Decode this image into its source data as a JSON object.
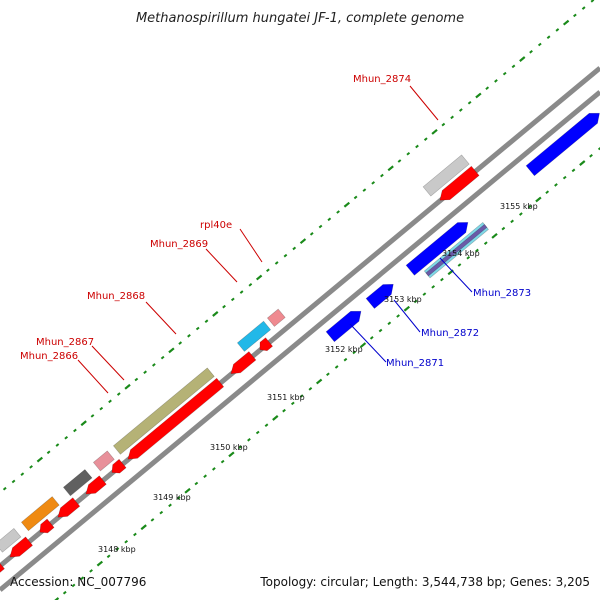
{
  "title": "Methanospirillum hungatei JF-1, complete genome",
  "footer": {
    "accession": "Accession: NC_007796",
    "summary": "Topology: circular; Length: 3,544,738 bp; Genes: 3,205"
  },
  "colors": {
    "backbone": "#888888",
    "reverse_gene": "#ff0000",
    "forward_gene": "#0000ff",
    "tick": "#1a8a1a",
    "label_red": "#cc0000",
    "label_blue": "#0000cc"
  },
  "ticks": [
    {
      "label": "3148 kbp"
    },
    {
      "label": "3149 kbp"
    },
    {
      "label": "3150 kbp"
    },
    {
      "label": "3151 kbp"
    },
    {
      "label": "3152 kbp"
    },
    {
      "label": "3153 kbp"
    },
    {
      "label": "3154 kbp"
    },
    {
      "label": "3155 kbp"
    }
  ],
  "labels": [
    {
      "text": "Mhun_2874",
      "strand": "reverse"
    },
    {
      "text": "rpl40e",
      "strand": "reverse"
    },
    {
      "text": "Mhun_2869",
      "strand": "reverse"
    },
    {
      "text": "Mhun_2868",
      "strand": "reverse"
    },
    {
      "text": "Mhun_2867",
      "strand": "reverse"
    },
    {
      "text": "Mhun_2866",
      "strand": "reverse"
    },
    {
      "text": "Mhun_2873",
      "strand": "forward"
    },
    {
      "text": "Mhun_2872",
      "strand": "forward"
    },
    {
      "text": "Mhun_2871",
      "strand": "forward"
    }
  ]
}
